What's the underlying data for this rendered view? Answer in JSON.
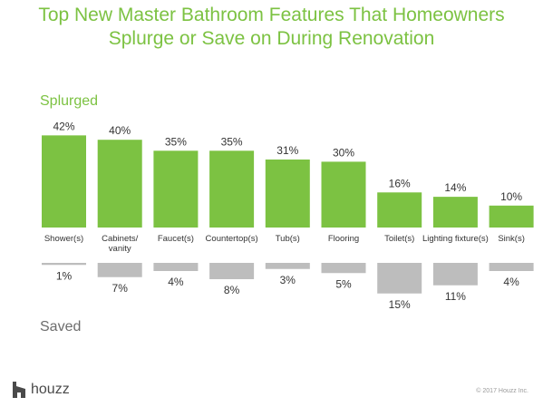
{
  "title_line1": "Top New Master Bathroom Features That Homeowners",
  "title_line2": "Splurge or Save on During Renovation",
  "labels": {
    "splurged": "Splurged",
    "saved": "Saved"
  },
  "brand": {
    "name": "houzz",
    "copyright": "© 2017 Houzz Inc.",
    "logo_icon": "houzz-logo-icon"
  },
  "colors": {
    "title": "#7cc242",
    "splurge_bar": "#7cc242",
    "save_bar": "#bdbdbd"
  },
  "chart_data": {
    "type": "bar",
    "categories": [
      [
        "Shower(s)"
      ],
      [
        "Cabinets/",
        "vanity"
      ],
      [
        "Faucet(s)"
      ],
      [
        "Countertop(s)"
      ],
      [
        "Tub(s)"
      ],
      [
        "Flooring"
      ],
      [
        "Toilet(s)"
      ],
      [
        "Lighting fixture(s)"
      ],
      [
        "Sink(s)"
      ]
    ],
    "series": [
      {
        "name": "Splurged",
        "values": [
          42,
          40,
          35,
          35,
          31,
          30,
          16,
          14,
          10
        ],
        "labels": [
          "42%",
          "40%",
          "35%",
          "35%",
          "31%",
          "30%",
          "16%",
          "14%",
          "10%"
        ]
      },
      {
        "name": "Saved",
        "values": [
          1,
          7,
          4,
          8,
          3,
          5,
          15,
          11,
          4
        ],
        "labels": [
          "1%",
          "7%",
          "4%",
          "8%",
          "3%",
          "5%",
          "15%",
          "11%",
          "4%"
        ]
      }
    ],
    "unit": "%"
  }
}
